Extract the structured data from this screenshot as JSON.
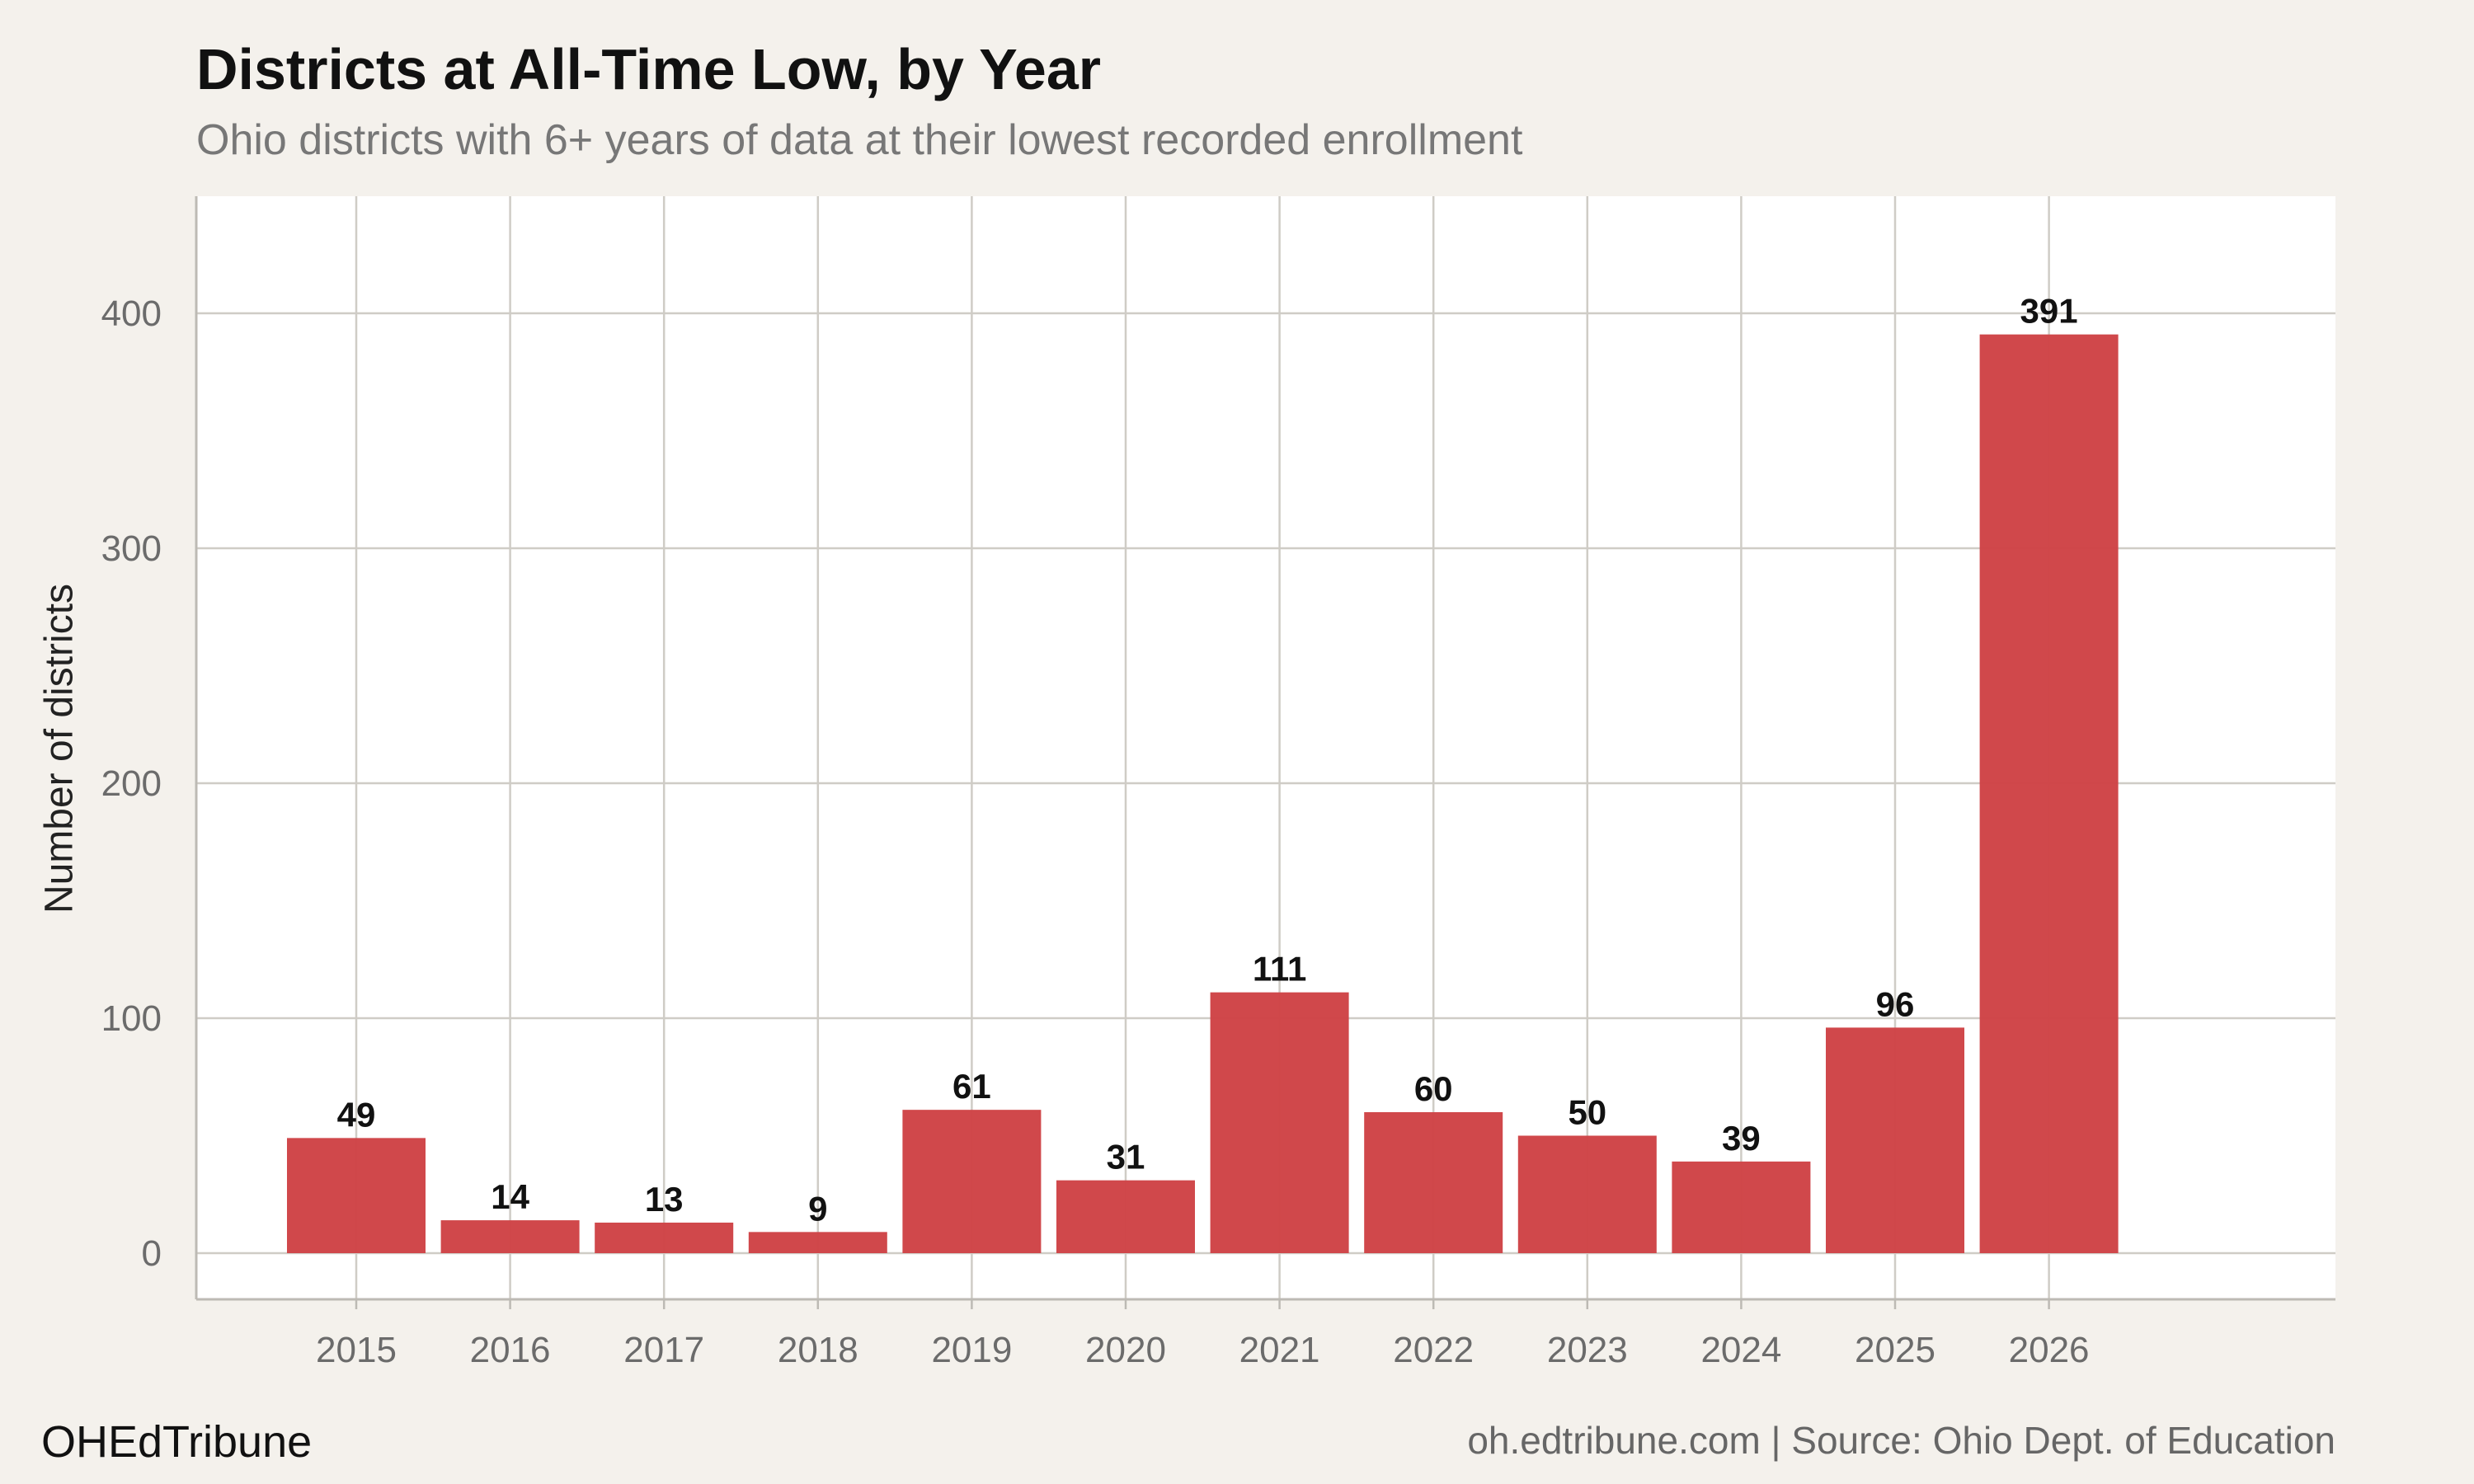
{
  "chart_data": {
    "type": "bar",
    "title": "Districts at All-Time Low, by Year",
    "subtitle": "Ohio districts with 6+ years of data at their lowest recorded enrollment",
    "xlabel": "",
    "ylabel": "Number of districts",
    "categories": [
      "2015",
      "2016",
      "2017",
      "2018",
      "2019",
      "2020",
      "2021",
      "2022",
      "2023",
      "2024",
      "2025",
      "2026"
    ],
    "values": [
      49,
      14,
      13,
      9,
      61,
      31,
      111,
      60,
      50,
      39,
      96,
      391
    ],
    "ylim": [
      0,
      450
    ],
    "yticks": [
      0,
      100,
      200,
      300,
      400
    ],
    "grid": true,
    "bar_color": "#cf4447",
    "data_labels": true
  },
  "footer": {
    "brand": "OHEdTribune",
    "source": "oh.edtribune.com | Source: Ohio Dept. of Education"
  }
}
